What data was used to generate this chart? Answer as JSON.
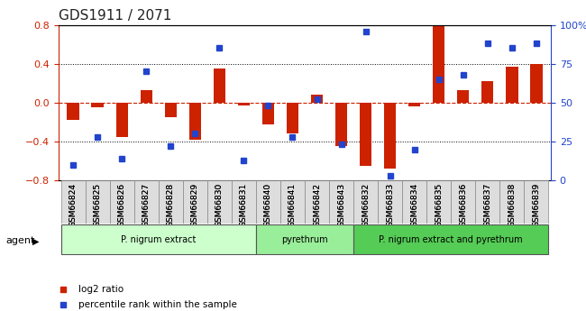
{
  "title": "GDS1911 / 2071",
  "samples": [
    "GSM66824",
    "GSM66825",
    "GSM66826",
    "GSM66827",
    "GSM66828",
    "GSM66829",
    "GSM66830",
    "GSM66831",
    "GSM66840",
    "GSM66841",
    "GSM66842",
    "GSM66843",
    "GSM66832",
    "GSM66833",
    "GSM66834",
    "GSM66835",
    "GSM66836",
    "GSM66837",
    "GSM66838",
    "GSM66839"
  ],
  "log2_ratio": [
    -0.18,
    -0.05,
    -0.35,
    0.13,
    -0.15,
    -0.38,
    0.35,
    -0.03,
    -0.22,
    -0.32,
    0.08,
    -0.45,
    -0.65,
    -0.68,
    -0.04,
    0.8,
    0.13,
    0.22,
    0.37,
    0.4
  ],
  "pct_rank": [
    10,
    28,
    14,
    70,
    22,
    30,
    85,
    13,
    48,
    28,
    52,
    23,
    96,
    3,
    20,
    65,
    68,
    88,
    85,
    88
  ],
  "groups": [
    {
      "label": "P. nigrum extract",
      "start": 0,
      "end": 8,
      "color": "#ccffcc"
    },
    {
      "label": "pyrethrum",
      "start": 8,
      "end": 12,
      "color": "#99ee99"
    },
    {
      "label": "P. nigrum extract and pyrethrum",
      "start": 12,
      "end": 20,
      "color": "#55cc55"
    }
  ],
  "bar_color": "#cc2200",
  "dot_color": "#2244cc",
  "zero_line_color": "#cc2200",
  "grid_color": "#000000",
  "ylim_left": [
    -0.8,
    0.8
  ],
  "ylim_right": [
    0,
    100
  ],
  "yticks_left": [
    -0.8,
    -0.4,
    0.0,
    0.4,
    0.8
  ],
  "yticks_right": [
    0,
    25,
    50,
    75,
    100
  ],
  "background_color": "#ffffff",
  "agent_label": "agent"
}
